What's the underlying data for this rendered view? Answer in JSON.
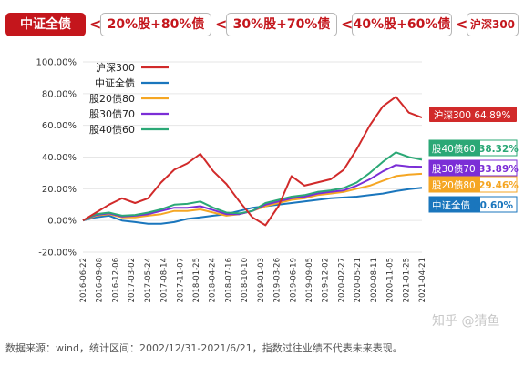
{
  "tabs": [
    {
      "label": "中证全债",
      "active": true
    },
    {
      "label": "20%股+80%债",
      "active": false
    },
    {
      "label": "30%股+70%债",
      "active": false
    },
    {
      "label": "40%股+60%债",
      "active": false
    },
    {
      "label": "沪深300",
      "active": false
    }
  ],
  "chart_data": {
    "type": "line",
    "ylim": [
      -20,
      100
    ],
    "yticks": [
      "100.00%",
      "80.00%",
      "60.00%",
      "40.00%",
      "20.00%",
      "0.00%",
      "-20.00%"
    ],
    "x_labels": [
      "2016-06-22",
      "2016-09-08",
      "2016-12-06",
      "2017-03-02",
      "2017-05-24",
      "2017-08-14",
      "2017-11-07",
      "2018-01-25",
      "2018-04-24",
      "2018-07-16",
      "2018-10-10",
      "2019-01-03",
      "2019-03-26",
      "2019-06-19",
      "2019-09-05",
      "2019-12-02",
      "2020-02-27",
      "2020-05-21",
      "2020-08-11",
      "2020-11-05",
      "2021-01-25",
      "2021-04-21"
    ],
    "legend_position": "top-left",
    "series": [
      {
        "name": "沪深300",
        "color": "#d12a2a",
        "end_label": "沪深300 64.89%",
        "values": [
          0,
          5,
          10,
          14,
          11,
          14,
          24,
          32,
          36,
          42,
          31,
          23,
          12,
          2,
          -3,
          9,
          28,
          22,
          24,
          26,
          32,
          45,
          60,
          72,
          78,
          68,
          64.89
        ]
      },
      {
        "name": "中证全债",
        "color": "#1a76bd",
        "end_label": "中证全债 20.60%",
        "values": [
          0,
          2,
          3,
          0,
          -1,
          -2,
          -2,
          -1,
          1,
          2,
          3,
          4,
          6,
          8,
          9,
          10,
          11,
          12,
          13,
          14,
          14.5,
          15,
          16,
          17,
          18.5,
          19.8,
          20.6
        ]
      },
      {
        "name": "股20债80",
        "color": "#f5a623",
        "end_label": "股20债80 29.46%",
        "values": [
          0,
          3,
          4,
          2,
          2,
          3,
          4,
          6,
          6,
          7,
          5,
          3,
          4,
          6,
          9,
          11,
          13,
          14,
          16,
          17,
          18,
          20,
          22,
          25,
          28,
          29,
          29.46
        ]
      },
      {
        "name": "股30债70",
        "color": "#7b2ed6",
        "end_label": "股30债70 33.89%",
        "values": [
          0,
          3.5,
          4.5,
          2.5,
          3,
          4,
          6,
          8,
          8,
          9,
          6.5,
          4,
          4,
          6,
          10,
          12,
          14,
          15,
          17,
          18,
          19,
          22,
          26,
          31,
          35,
          34,
          33.89
        ]
      },
      {
        "name": "股40债60",
        "color": "#2ba876",
        "end_label": "股40债60 38.32%",
        "values": [
          0,
          4,
          5,
          3,
          3.5,
          5,
          7,
          10,
          10.5,
          12,
          8,
          5,
          4.5,
          6,
          11,
          13,
          15,
          16,
          18,
          19,
          20.5,
          24,
          30,
          37,
          43,
          40,
          38.32
        ]
      }
    ]
  },
  "footer": "数据来源：wind，统计区间：2002/12/31-2021/6/21，指数过往业绩不代表未来表现。",
  "watermark": "知乎 @猜鱼"
}
